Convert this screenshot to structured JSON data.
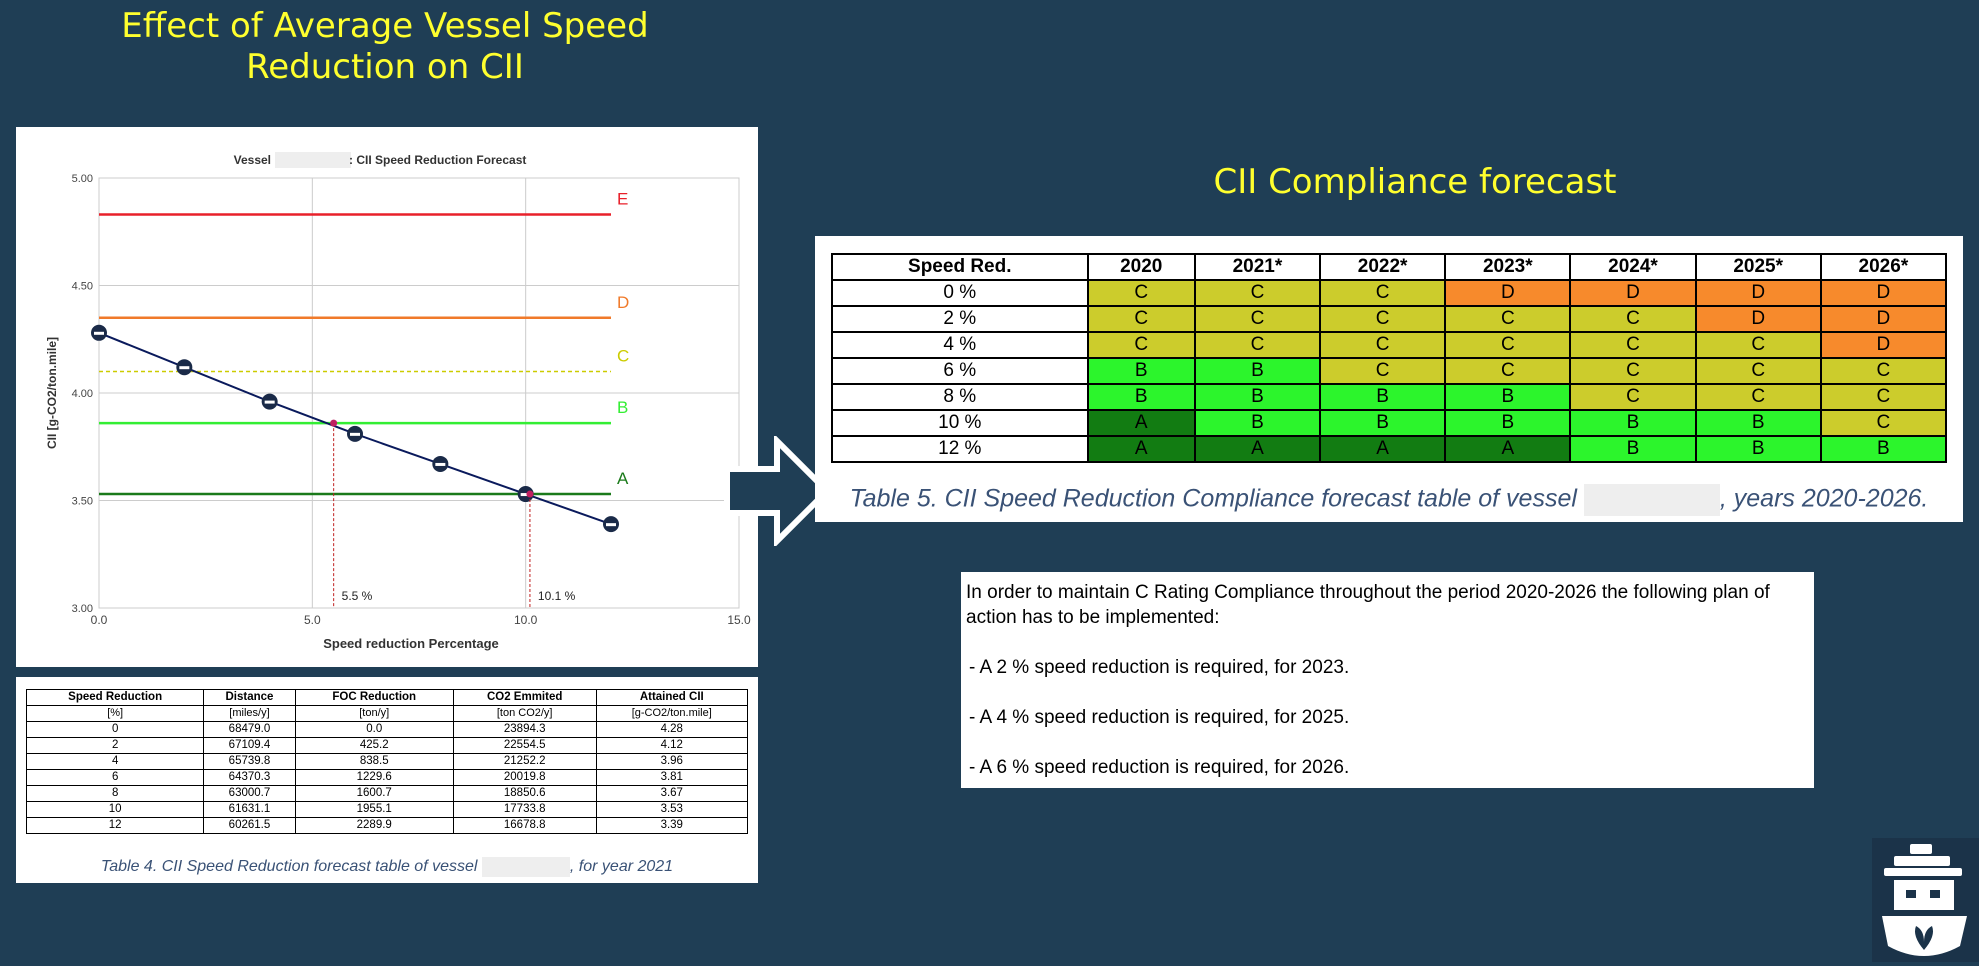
{
  "slide": {
    "title": "Effect of Average Vessel Speed Reduction on CII",
    "right_title": "CII Compliance forecast"
  },
  "chart_data": {
    "type": "line",
    "title_prefix": "Vessel",
    "title_suffix": ": CII Speed Reduction Forecast",
    "xlabel": "Speed reduction Percentage",
    "ylabel": "CII [g-CO2/ton.mile]",
    "xlim": [
      0,
      15
    ],
    "ylim": [
      3.0,
      5.0
    ],
    "xticks": [
      "0.0",
      "5.0",
      "10.0",
      "15.0"
    ],
    "yticks": [
      "3.00",
      "3.50",
      "4.00",
      "4.50",
      "5.00"
    ],
    "grid": true,
    "series": [
      {
        "x": [
          0,
          2,
          4,
          6,
          8,
          10,
          12
        ],
        "y": [
          4.28,
          4.12,
          3.96,
          3.81,
          3.67,
          3.53,
          3.39
        ],
        "color": "#0a1a5c"
      }
    ],
    "thresholds": [
      {
        "label": "E",
        "value": 4.83,
        "color": "#e8202a",
        "style": "solid"
      },
      {
        "label": "D",
        "value": 4.35,
        "color": "#f07a2a",
        "style": "solid"
      },
      {
        "label": "C",
        "value": 4.1,
        "color": "#cccc00",
        "style": "dashed"
      },
      {
        "label": "B",
        "value": 3.86,
        "color": "#33ee33",
        "style": "solid"
      },
      {
        "label": "A",
        "value": 3.53,
        "color": "#1a7a1a",
        "style": "solid"
      }
    ],
    "markers": [
      {
        "x": 5.5,
        "y": 3.86,
        "label": "5.5 %"
      },
      {
        "x": 10.1,
        "y": 3.53,
        "label": "10.1 %"
      }
    ]
  },
  "table4": {
    "headers": [
      "Speed Reduction",
      "Distance",
      "FOC Reduction",
      "CO2 Emmited",
      "Attained CII"
    ],
    "units": [
      "[%]",
      "[miles/y]",
      "[ton/y]",
      "[ton CO2/y]",
      "[g-CO2/ton.mile]"
    ],
    "rows": [
      [
        "0",
        "68479.0",
        "0.0",
        "23894.3",
        "4.28"
      ],
      [
        "2",
        "67109.4",
        "425.2",
        "22554.5",
        "4.12"
      ],
      [
        "4",
        "65739.8",
        "838.5",
        "21252.2",
        "3.96"
      ],
      [
        "6",
        "64370.3",
        "1229.6",
        "20019.8",
        "3.81"
      ],
      [
        "8",
        "63000.7",
        "1600.7",
        "18850.6",
        "3.67"
      ],
      [
        "10",
        "61631.1",
        "1955.1",
        "17733.8",
        "3.53"
      ],
      [
        "12",
        "60261.5",
        "2289.9",
        "16678.8",
        "3.39"
      ]
    ],
    "caption_prefix": "Table 4. CII Speed Reduction forecast table of vessel",
    "caption_suffix": ", for year 2021"
  },
  "table5": {
    "headers": [
      "Speed Red.",
      "2020",
      "2021*",
      "2022*",
      "2023*",
      "2024*",
      "2025*",
      "2026*"
    ],
    "rows": [
      {
        "label": "0 %",
        "ratings": [
          "C",
          "C",
          "C",
          "D",
          "D",
          "D",
          "D"
        ]
      },
      {
        "label": "2 %",
        "ratings": [
          "C",
          "C",
          "C",
          "C",
          "C",
          "D",
          "D"
        ]
      },
      {
        "label": "4 %",
        "ratings": [
          "C",
          "C",
          "C",
          "C",
          "C",
          "C",
          "D"
        ]
      },
      {
        "label": "6 %",
        "ratings": [
          "B",
          "B",
          "C",
          "C",
          "C",
          "C",
          "C"
        ]
      },
      {
        "label": "8 %",
        "ratings": [
          "B",
          "B",
          "B",
          "B",
          "C",
          "C",
          "C"
        ]
      },
      {
        "label": "10 %",
        "ratings": [
          "A",
          "B",
          "B",
          "B",
          "B",
          "B",
          "C"
        ]
      },
      {
        "label": "12 %",
        "ratings": [
          "A",
          "A",
          "A",
          "A",
          "B",
          "B",
          "B"
        ]
      }
    ],
    "rating_colors": {
      "A": "#127c12",
      "B": "#2cf52c",
      "C": "#cccc2c",
      "D": "#f78a2c"
    },
    "caption_prefix": "Table 5. CII Speed Reduction Compliance forecast table of vessel",
    "caption_suffix": ", years 2020-2026."
  },
  "plan": {
    "intro": "In order to maintain C Rating Compliance throughout the period  2020-2026 the following plan of action has to be implemented:",
    "steps": [
      "- A 2 % speed reduction is required, for 2023.",
      "- A 4 % speed reduction is required, for 2025.",
      "- A 6 % speed reduction is required, for 2026."
    ]
  },
  "logo": {
    "icon": "ship-leaf-logo"
  }
}
